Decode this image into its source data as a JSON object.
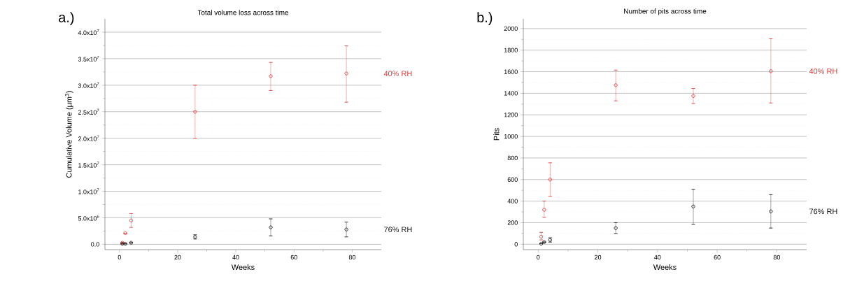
{
  "chart_data": [
    {
      "type": "scatter",
      "title": "Total volume loss across time",
      "xlabel": "Weeks",
      "ylabel": "Cumulative Volume (µm$^{3}$)",
      "annotations": [
        "a.)"
      ],
      "xlim": [
        -5,
        90
      ],
      "xticks": [
        0,
        20,
        40,
        60,
        80
      ],
      "ylim": [
        -1000000,
        42500000
      ],
      "yticks": [
        {
          "value": 0,
          "label": "0.0"
        },
        {
          "value": 5000000,
          "label": "5.0x10$^{6}$"
        },
        {
          "value": 10000000,
          "label": "1.0x10$^{7}$"
        },
        {
          "value": 15000000,
          "label": "1.5x10$^{7}$"
        },
        {
          "value": 20000000,
          "label": "2.0x10$^{7}$"
        },
        {
          "value": 25000000,
          "label": "2.5x10$^{7}$"
        },
        {
          "value": 30000000,
          "label": "3.0x10$^{7}$"
        },
        {
          "value": 35000000,
          "label": "3.5x10$^{7}$"
        },
        {
          "value": 40000000,
          "label": "4.0x10$^{7}$"
        }
      ],
      "grid": "y",
      "marker": "circle",
      "series": [
        {
          "name": "40% RH",
          "color": "#e03a3a",
          "x": [
            1,
            2,
            4,
            26,
            52,
            78
          ],
          "values": [
            300000,
            2100000,
            4500000,
            25000000,
            31700000,
            32200000
          ],
          "errors": [
            null,
            null,
            [
              3200000,
              5800000
            ],
            [
              20000000,
              30000000
            ],
            [
              29000000,
              34300000
            ],
            [
              26800000,
              37400000
            ]
          ]
        },
        {
          "name": "76% RH",
          "color": "#1a1a1a",
          "x": [
            1,
            2,
            4,
            26,
            52,
            78
          ],
          "values": [
            100000,
            100000,
            300000,
            1400000,
            3200000,
            2800000
          ],
          "errors": [
            null,
            null,
            null,
            [
              1000000,
              1800000
            ],
            [
              1600000,
              4800000
            ],
            [
              1400000,
              4200000
            ]
          ]
        }
      ]
    },
    {
      "type": "scatter",
      "title": "Number of pits across time",
      "xlabel": "Weeks",
      "ylabel": "Pits",
      "annotations": [
        "b.)"
      ],
      "xlim": [
        -5,
        90
      ],
      "xticks": [
        0,
        20,
        40,
        60,
        80
      ],
      "ylim": [
        -50,
        2090
      ],
      "yticks": [
        0,
        200,
        400,
        600,
        800,
        1000,
        1200,
        1400,
        1600,
        1800,
        2000
      ],
      "grid": "y",
      "marker": "circle",
      "series": [
        {
          "name": "40% RH",
          "color": "#e03a3a",
          "x": [
            1,
            2,
            4,
            26,
            52,
            78
          ],
          "values": [
            70,
            320,
            600,
            1475,
            1375,
            1605
          ],
          "errors": [
            [
              40,
              110
            ],
            [
              250,
              400
            ],
            [
              445,
              755
            ],
            [
              1330,
              1615
            ],
            [
              1305,
              1445
            ],
            [
              1310,
              1905
            ]
          ]
        },
        {
          "name": "76% RH",
          "color": "#1a1a1a",
          "x": [
            1,
            2,
            4,
            26,
            52,
            78
          ],
          "values": [
            5,
            20,
            40,
            150,
            350,
            305
          ],
          "errors": [
            null,
            null,
            [
              20,
              60
            ],
            [
              100,
              200
            ],
            [
              185,
              510
            ],
            [
              150,
              460
            ]
          ]
        }
      ]
    }
  ]
}
